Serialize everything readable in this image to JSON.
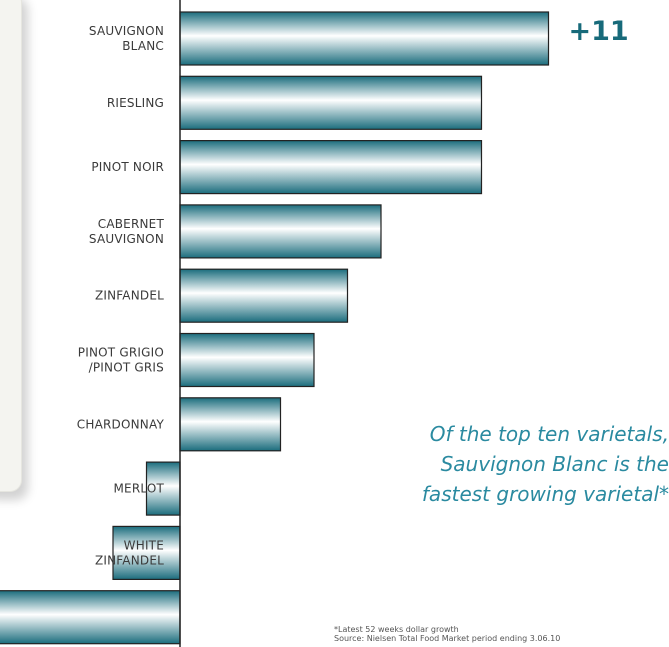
{
  "chart_data": {
    "type": "bar",
    "orientation": "horizontal",
    "categories": [
      [
        "SAUVIGNON",
        "BLANC"
      ],
      [
        "RIESLING"
      ],
      [
        "PINOT NOIR"
      ],
      [
        "CABERNET",
        "SAUVIGNON"
      ],
      [
        "ZINFANDEL"
      ],
      [
        "PINOT GRIGIO",
        "/PINOT GRIS"
      ],
      [
        "CHARDONNAY"
      ],
      [
        "MERLOT"
      ],
      [
        "WHITE",
        "ZINFANDEL"
      ],
      [
        ""
      ]
    ],
    "values": [
      11,
      9,
      9,
      6,
      5,
      4,
      3,
      -1,
      -2,
      -6
    ],
    "annotation": "+11",
    "bar_colors": {
      "dark": "#1b6d7d",
      "light": "#ffffff"
    },
    "grid": false
  },
  "tagline": {
    "line1": "Of the top ten varietals,",
    "line2": "Sauvignon Blanc is the",
    "line3": "fastest growing varietal*"
  },
  "footnote": {
    "line1": "*Latest 52 weeks dollar growth",
    "line2": "Source: Nielsen Total Food Market period ending 3.06.10"
  }
}
